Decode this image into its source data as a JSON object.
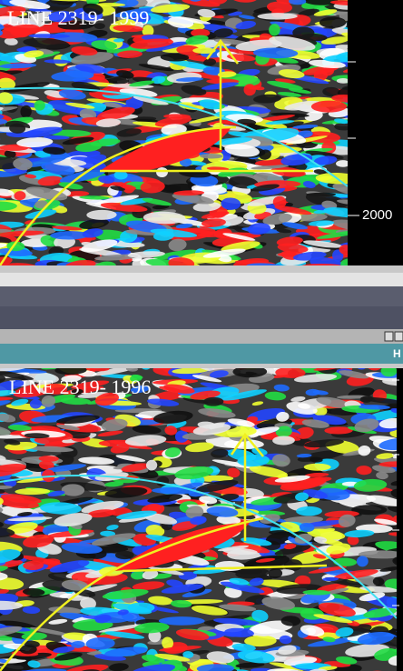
{
  "top_panel": {
    "title": "LINE 2319- 1999",
    "axis_label": "2000"
  },
  "toolbar": {
    "label": "H"
  },
  "bottom_panel": {
    "title": "LINE 2319- 1996"
  }
}
